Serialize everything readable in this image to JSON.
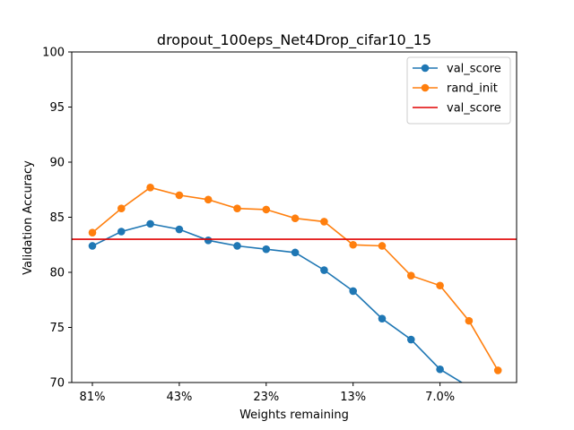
{
  "chart_data": {
    "type": "line",
    "title": "dropout_100eps_Net4Drop_cifar10_15",
    "xlabel": "Weights remaining",
    "ylabel": "Validation Accuracy",
    "ylim": [
      70,
      100
    ],
    "yticks": [
      70,
      75,
      80,
      85,
      90,
      95,
      100
    ],
    "xticks": [
      {
        "index": 0,
        "label": "81%"
      },
      {
        "index": 3,
        "label": "43%"
      },
      {
        "index": 6,
        "label": "23%"
      },
      {
        "index": 9,
        "label": "13%"
      },
      {
        "index": 12,
        "label": "7.0%"
      }
    ],
    "legend_position": "top-right",
    "grid": false,
    "series": [
      {
        "name": "val_score",
        "color": "#1f77b4",
        "marker": "circle",
        "values": [
          82.4,
          83.7,
          84.4,
          83.9,
          82.9,
          82.4,
          82.1,
          81.8,
          80.2,
          78.3,
          75.8,
          73.9,
          71.2,
          69.6
        ]
      },
      {
        "name": "rand_init",
        "color": "#ff7f0e",
        "marker": "circle",
        "values": [
          83.6,
          85.8,
          87.7,
          87.0,
          86.6,
          85.8,
          85.7,
          84.9,
          84.6,
          82.5,
          82.4,
          79.7,
          78.8,
          75.6,
          71.1
        ]
      }
    ],
    "hlines": [
      {
        "name": "val_score",
        "color": "#e00000",
        "y": 83.0
      }
    ]
  }
}
